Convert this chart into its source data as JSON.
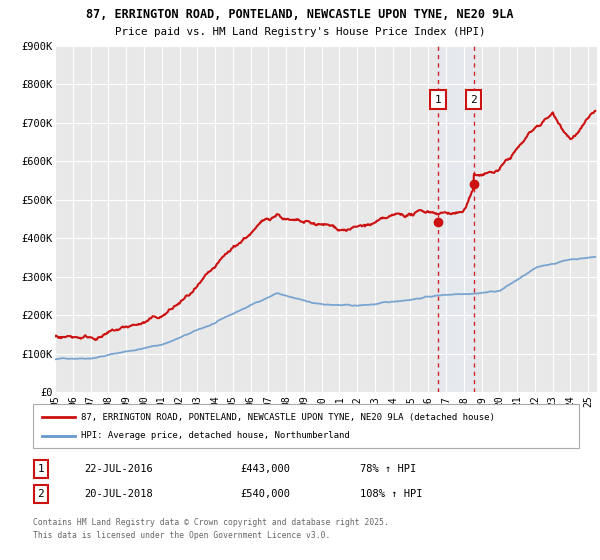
{
  "title1": "87, ERRINGTON ROAD, PONTELAND, NEWCASTLE UPON TYNE, NE20 9LA",
  "title2": "Price paid vs. HM Land Registry's House Price Index (HPI)",
  "ylim": [
    0,
    900000
  ],
  "yticks": [
    0,
    100000,
    200000,
    300000,
    400000,
    500000,
    600000,
    700000,
    800000,
    900000
  ],
  "ytick_labels": [
    "£0",
    "£100K",
    "£200K",
    "£300K",
    "£400K",
    "£500K",
    "£600K",
    "£700K",
    "£800K",
    "£900K"
  ],
  "hpi_color": "#6699cc",
  "price_color": "#cc1111",
  "vline_color": "#cc1111",
  "shade_color": "#ddeeff",
  "sale1_x": 2016.55,
  "sale1_price": 443000,
  "sale1_label": "1",
  "sale1_date": "22-JUL-2016",
  "sale1_pct": "78% ↑ HPI",
  "sale2_x": 2018.55,
  "sale2_price": 540000,
  "sale2_label": "2",
  "sale2_date": "20-JUL-2018",
  "sale2_pct": "108% ↑ HPI",
  "legend_line1": "87, ERRINGTON ROAD, PONTELAND, NEWCASTLE UPON TYNE, NE20 9LA (detached house)",
  "legend_line2": "HPI: Average price, detached house, Northumberland",
  "footnote": "Contains HM Land Registry data © Crown copyright and database right 2025.\nThis data is licensed under the Open Government Licence v3.0.",
  "xmin": 1995,
  "xmax": 2025.5,
  "bg_color": "#ffffff",
  "plot_bg": "#e8e8e8"
}
